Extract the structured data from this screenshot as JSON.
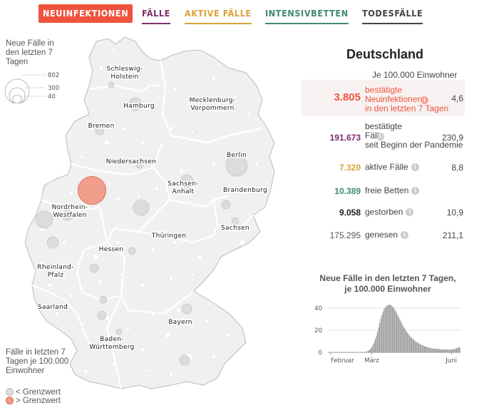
{
  "tabs": [
    {
      "label": "NEUINFEKTIONEN",
      "color": "#f0533d",
      "active": true
    },
    {
      "label": "FÄLLE",
      "color": "#7f2e6e",
      "active": false
    },
    {
      "label": "AKTIVE FÄLLE",
      "color": "#d9a23a",
      "active": false
    },
    {
      "label": "INTENSIVBETTEN",
      "color": "#3f8a71",
      "active": false
    },
    {
      "label": "TODESFÄLLE",
      "color": "#444444",
      "active": false
    }
  ],
  "legend": {
    "size_title": "Neue Fälle in den letzten 7 Tagen",
    "size_values": [
      "802",
      "300",
      "40"
    ],
    "color_title": "Fälle in letzten 7 Tagen je 100.000 Einwohner",
    "below": "< Grenzwert",
    "above": "> Grenzwert"
  },
  "states": [
    {
      "name": "Schleswig-\nHolstein"
    },
    {
      "name": "Hamburg"
    },
    {
      "name": "Mecklenburg-\nVorpommern"
    },
    {
      "name": "Bremen"
    },
    {
      "name": "Berlin"
    },
    {
      "name": "Niedersachsen"
    },
    {
      "name": "Brandenburg"
    },
    {
      "name": "Sachsen-\nAnhalt"
    },
    {
      "name": "Nordrhein-\nWestfalen"
    },
    {
      "name": "Sachsen"
    },
    {
      "name": "Thüringen"
    },
    {
      "name": "Hessen"
    },
    {
      "name": "Rheinland-\nPfalz"
    },
    {
      "name": "Saarland"
    },
    {
      "name": "Bayern"
    },
    {
      "name": "Baden-\nWürttemberg"
    }
  ],
  "panel": {
    "title": "Deutschland",
    "per_label": "Je 100.000 Einwohner",
    "per_arrow": "↓",
    "stats": [
      {
        "value": "3.805",
        "label": "bestätigte\nNeuinfektionen\nin den letzten 7 Tagen",
        "per": "4,6",
        "color": "#f0533d",
        "info": true
      },
      {
        "value": "191.673",
        "label": "bestätigte\nFälle\nseit Beginn der Pandemie",
        "per": "230,9",
        "color": "#7f2e6e",
        "info": true
      },
      {
        "value": "7.320",
        "label": "aktive Fälle",
        "per": "8,8",
        "color": "#d9a23a",
        "info": true
      },
      {
        "value": "10.389",
        "label": "freie Betten",
        "per": "",
        "color": "#3f8a71",
        "info": true
      },
      {
        "value": "9.058",
        "label": "gestorben",
        "per": "10,9",
        "color": "#222222",
        "info": true
      },
      {
        "value": "175.295",
        "label": "genesen",
        "per": "211,1",
        "color": "#555555",
        "info": true
      }
    ]
  },
  "mini_chart": {
    "title": "Neue Fälle in den letzten 7 Tagen,\nje 100.000 Einwohner"
  },
  "chart_data": {
    "type": "bar",
    "title": "Neue Fälle in den letzten 7 Tagen, je 100.000 Einwohner",
    "ylim": [
      0,
      45
    ],
    "yticks": [
      0,
      20,
      40
    ],
    "xtick_labels": [
      "Februar",
      "März",
      "Juni"
    ],
    "values": [
      0,
      0,
      0,
      0,
      0,
      0,
      0,
      0,
      0,
      0,
      0,
      0,
      0,
      0,
      0,
      0,
      0,
      0,
      0,
      0,
      0,
      0,
      0,
      0,
      0,
      0,
      0,
      0,
      0,
      0,
      0,
      0,
      0.1,
      0.2,
      0.3,
      0.5,
      0.8,
      1.2,
      1.8,
      2.6,
      3.8,
      5.3,
      7.2,
      9.5,
      12.3,
      15.5,
      19,
      22.8,
      26.6,
      30.2,
      33.5,
      36.3,
      38.6,
      40.3,
      41.5,
      42.3,
      42.8,
      43,
      42.8,
      42.3,
      41.4,
      40.2,
      38.8,
      37.2,
      35.4,
      33.5,
      31.5,
      29.5,
      27.5,
      25.6,
      23.8,
      22.1,
      20.5,
      19,
      17.6,
      16.3,
      15.1,
      14,
      13,
      12.1,
      11.3,
      10.5,
      9.8,
      9.1,
      8.5,
      7.9,
      7.4,
      6.9,
      6.4,
      6,
      5.6,
      5.2,
      4.9,
      4.6,
      4.3,
      4.1,
      3.9,
      3.7,
      3.5,
      3.4,
      3.3,
      3.2,
      3.1,
      3,
      2.9,
      2.8,
      2.8,
      2.7,
      2.7,
      2.6,
      2.6,
      2.6,
      2.5,
      2.5,
      2.5,
      2.6,
      2.7,
      2.9,
      3.1,
      3.4,
      3.7,
      4.1,
      4.4,
      4.6
    ]
  }
}
